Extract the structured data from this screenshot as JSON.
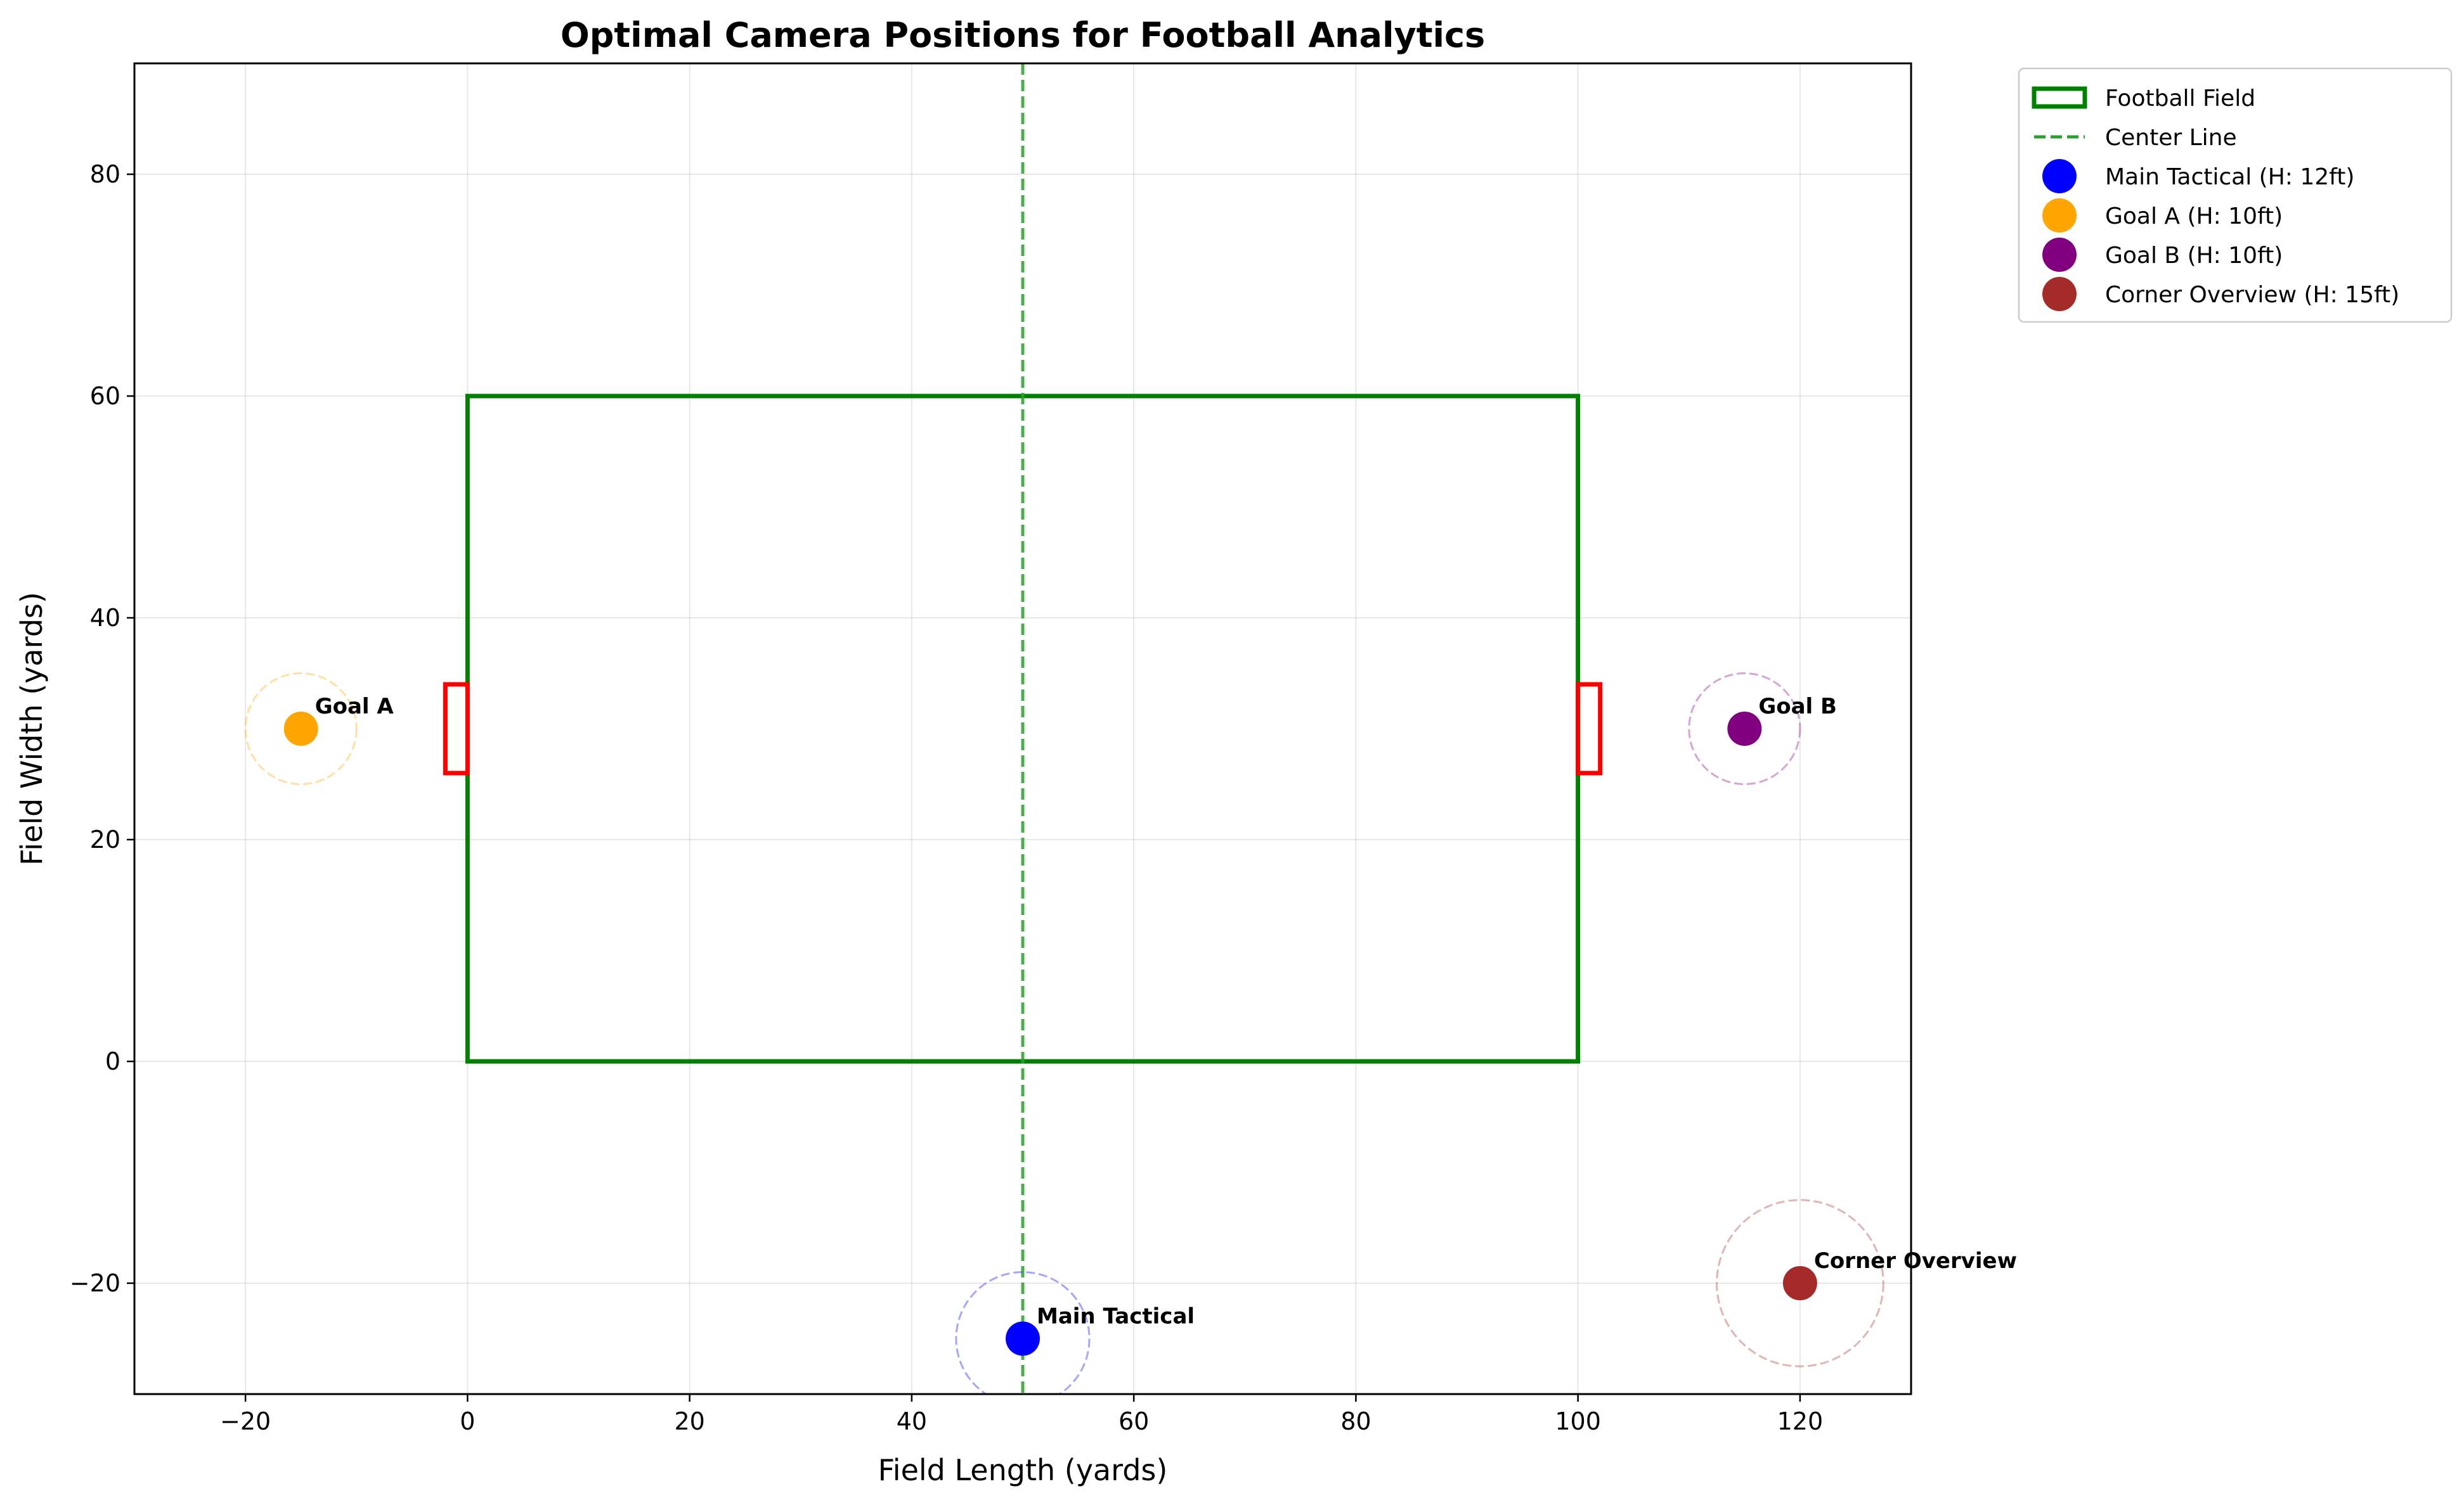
{
  "chart_data": {
    "type": "scatter",
    "title": "Optimal Camera Positions for Football Analytics",
    "xlabel": "Field Length (yards)",
    "ylabel": "Field Width (yards)",
    "xlim": [
      -30,
      130
    ],
    "ylim": [
      -30,
      90
    ],
    "xticks": [
      -20,
      0,
      20,
      40,
      60,
      80,
      100,
      120
    ],
    "yticks": [
      -20,
      0,
      20,
      40,
      60,
      80
    ],
    "xtick_labels": [
      "−20",
      "0",
      "20",
      "40",
      "60",
      "80",
      "100",
      "120"
    ],
    "ytick_labels": [
      "−20",
      "0",
      "20",
      "40",
      "60",
      "80"
    ],
    "grid": true,
    "legend_position": "outside top-right",
    "field": {
      "label": "Football Field",
      "x": [
        0,
        100
      ],
      "y": [
        0,
        60
      ],
      "color": "#008000"
    },
    "center_line": {
      "label": "Center Line",
      "x": 50,
      "color": "#2ca02c"
    },
    "goals": [
      {
        "x": [
          -2,
          0
        ],
        "y": [
          26,
          34
        ],
        "color": "#ff0000"
      },
      {
        "x": [
          100,
          102
        ],
        "y": [
          26,
          34
        ],
        "color": "#ff0000"
      }
    ],
    "cameras": [
      {
        "name": "Main Tactical",
        "legend": "Main Tactical (H: 12ft)",
        "x": 50,
        "y": -25,
        "height_ft": 12,
        "coverage_radius": 6,
        "color": "#0000ff"
      },
      {
        "name": "Goal A",
        "legend": "Goal A (H: 10ft)",
        "x": -15,
        "y": 30,
        "height_ft": 10,
        "coverage_radius": 5,
        "color": "#ffa500"
      },
      {
        "name": "Goal B",
        "legend": "Goal B (H: 10ft)",
        "x": 115,
        "y": 30,
        "height_ft": 10,
        "coverage_radius": 5,
        "color": "#800080"
      },
      {
        "name": "Corner Overview",
        "legend": "Corner Overview (H: 15ft)",
        "x": 120,
        "y": -20,
        "height_ft": 15,
        "coverage_radius": 7.5,
        "color": "#a52a2a"
      }
    ]
  }
}
